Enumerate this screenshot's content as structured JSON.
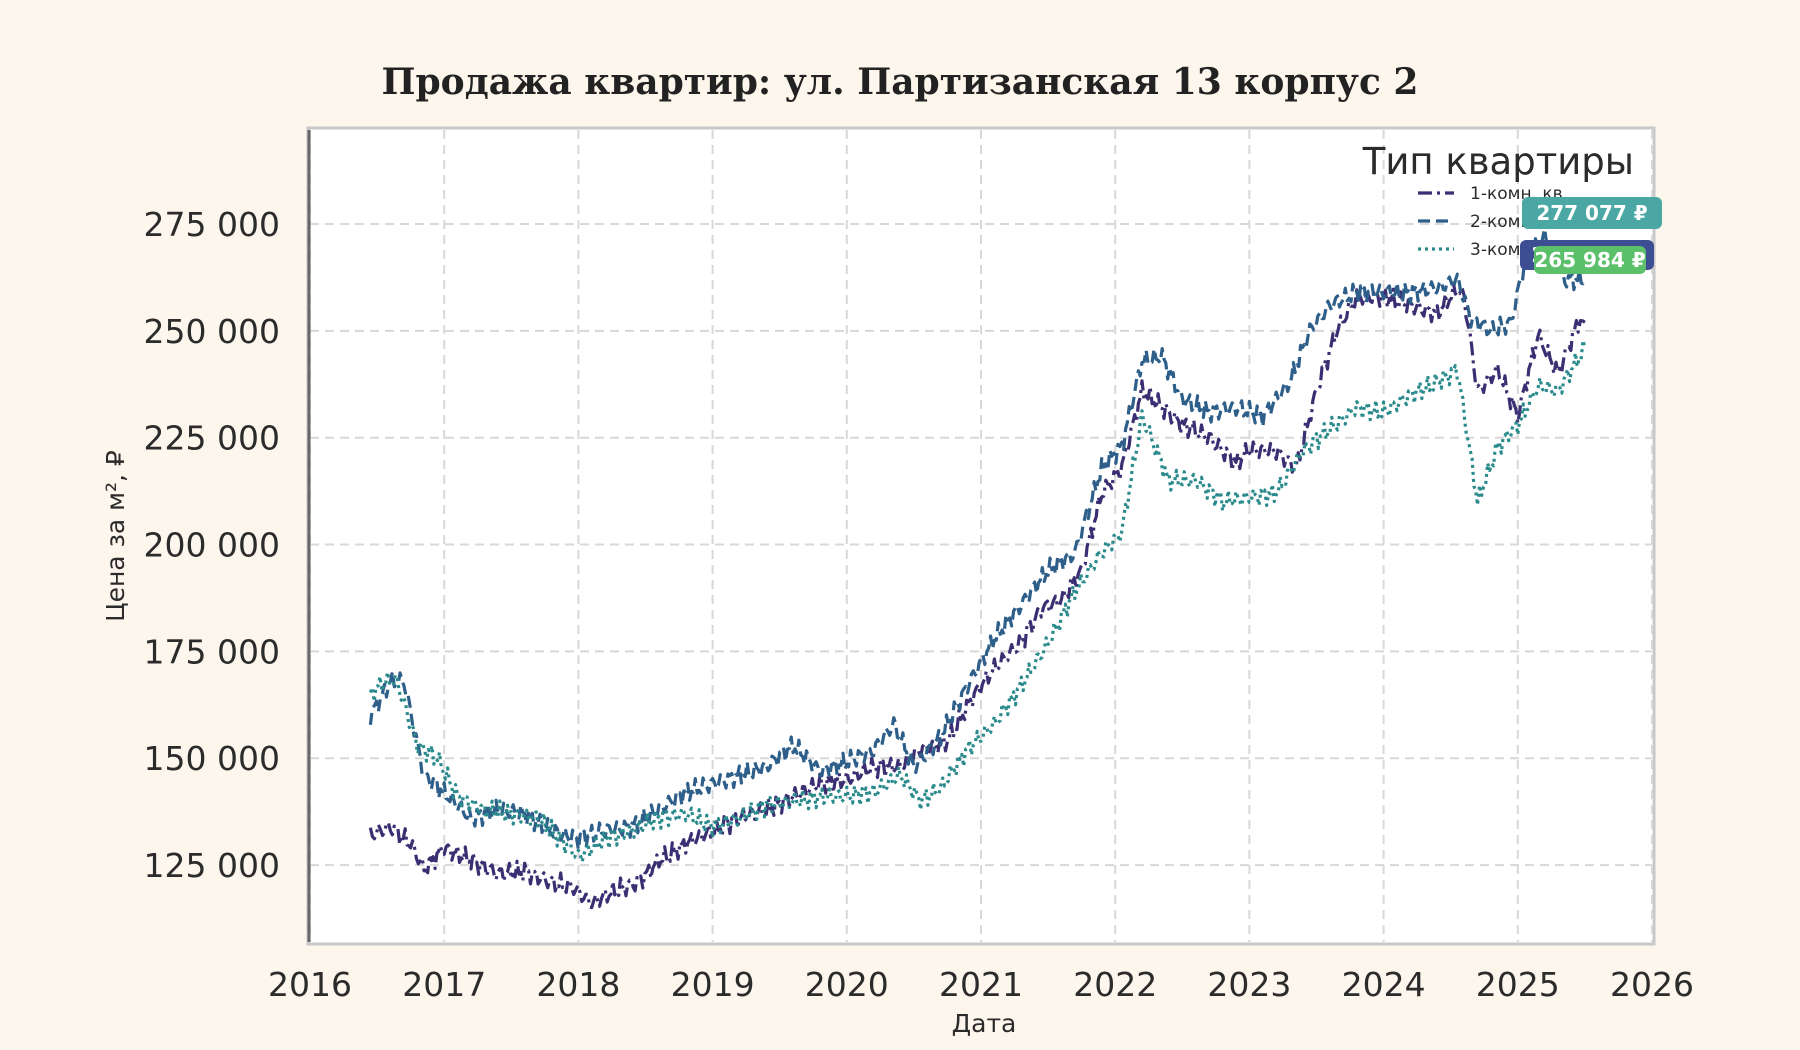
{
  "chart_data": {
    "type": "line",
    "title": "Продажа квартир: ул. Партизанская 13 корпус 2",
    "xlabel": "Дата",
    "ylabel": "Цена за м², ₽",
    "xlim": [
      2016,
      2026
    ],
    "ylim": [
      107000,
      297000
    ],
    "x_ticks": [
      "2016",
      "2017",
      "2018",
      "2019",
      "2020",
      "2021",
      "2022",
      "2023",
      "2024",
      "2025",
      "2026"
    ],
    "y_ticks": [
      125000,
      150000,
      175000,
      200000,
      225000,
      250000,
      275000
    ],
    "y_tick_labels": [
      "125 000",
      "150 000",
      "175 000",
      "200 000",
      "225 000",
      "250 000",
      "275 000"
    ],
    "grid": true,
    "legend": {
      "title": "Тип квартиры",
      "placement": "top-right"
    },
    "series": [
      {
        "name": "1-комн. кв.",
        "color": "#3b2e72",
        "style": "dashdot",
        "points": [
          [
            2016.45,
            132000
          ],
          [
            2016.6,
            134000
          ],
          [
            2016.75,
            130000
          ],
          [
            2016.85,
            124000
          ],
          [
            2017.0,
            129000
          ],
          [
            2017.2,
            126000
          ],
          [
            2017.4,
            123000
          ],
          [
            2017.6,
            123500
          ],
          [
            2017.8,
            121000
          ],
          [
            2017.95,
            120000
          ],
          [
            2018.1,
            116000
          ],
          [
            2018.3,
            119500
          ],
          [
            2018.45,
            121000
          ],
          [
            2018.6,
            126000
          ],
          [
            2018.8,
            130000
          ],
          [
            2019.0,
            133000
          ],
          [
            2019.2,
            136000
          ],
          [
            2019.4,
            138000
          ],
          [
            2019.6,
            141000
          ],
          [
            2019.8,
            144000
          ],
          [
            2020.0,
            145000
          ],
          [
            2020.2,
            148000
          ],
          [
            2020.4,
            148000
          ],
          [
            2020.55,
            152000
          ],
          [
            2020.75,
            154000
          ],
          [
            2020.95,
            165000
          ],
          [
            2021.1,
            171000
          ],
          [
            2021.3,
            177000
          ],
          [
            2021.45,
            185000
          ],
          [
            2021.6,
            187000
          ],
          [
            2021.75,
            194000
          ],
          [
            2021.9,
            212000
          ],
          [
            2022.05,
            218000
          ],
          [
            2022.2,
            236000
          ],
          [
            2022.35,
            232000
          ],
          [
            2022.5,
            228000
          ],
          [
            2022.7,
            225000
          ],
          [
            2022.9,
            219000
          ],
          [
            2023.0,
            222000
          ],
          [
            2023.2,
            222000
          ],
          [
            2023.35,
            218000
          ],
          [
            2023.5,
            236000
          ],
          [
            2023.65,
            250000
          ],
          [
            2023.8,
            258000
          ],
          [
            2024.0,
            258000
          ],
          [
            2024.2,
            256000
          ],
          [
            2024.4,
            254000
          ],
          [
            2024.55,
            260000
          ],
          [
            2024.6,
            258000
          ],
          [
            2024.7,
            236000
          ],
          [
            2024.85,
            241000
          ],
          [
            2025.0,
            230000
          ],
          [
            2025.15,
            249000
          ],
          [
            2025.3,
            240000
          ],
          [
            2025.45,
            252000
          ],
          [
            2025.5,
            252000
          ]
        ]
      },
      {
        "name": "2-комн. кв.",
        "color": "#2e5f8a",
        "style": "dashed",
        "points": [
          [
            2016.45,
            160000
          ],
          [
            2016.6,
            168000
          ],
          [
            2016.7,
            168000
          ],
          [
            2016.85,
            146000
          ],
          [
            2017.0,
            142000
          ],
          [
            2017.2,
            136000
          ],
          [
            2017.4,
            138000
          ],
          [
            2017.6,
            137000
          ],
          [
            2017.8,
            133000
          ],
          [
            2018.0,
            131000
          ],
          [
            2018.2,
            133000
          ],
          [
            2018.4,
            134000
          ],
          [
            2018.6,
            138000
          ],
          [
            2018.8,
            142000
          ],
          [
            2019.0,
            144000
          ],
          [
            2019.2,
            146000
          ],
          [
            2019.4,
            148000
          ],
          [
            2019.6,
            153000
          ],
          [
            2019.8,
            147000
          ],
          [
            2020.0,
            149000
          ],
          [
            2020.2,
            152000
          ],
          [
            2020.35,
            158000
          ],
          [
            2020.5,
            148000
          ],
          [
            2020.7,
            155000
          ],
          [
            2020.9,
            167000
          ],
          [
            2021.1,
            178000
          ],
          [
            2021.3,
            186000
          ],
          [
            2021.5,
            194000
          ],
          [
            2021.7,
            198000
          ],
          [
            2021.9,
            218000
          ],
          [
            2022.05,
            223000
          ],
          [
            2022.2,
            243000
          ],
          [
            2022.35,
            244000
          ],
          [
            2022.5,
            234000
          ],
          [
            2022.7,
            231000
          ],
          [
            2022.9,
            232000
          ],
          [
            2023.1,
            230000
          ],
          [
            2023.3,
            238000
          ],
          [
            2023.45,
            250000
          ],
          [
            2023.6,
            256000
          ],
          [
            2023.8,
            259000
          ],
          [
            2024.0,
            259000
          ],
          [
            2024.2,
            259000
          ],
          [
            2024.4,
            260000
          ],
          [
            2024.55,
            262000
          ],
          [
            2024.65,
            253000
          ],
          [
            2024.8,
            250000
          ],
          [
            2024.95,
            252000
          ],
          [
            2025.05,
            266000
          ],
          [
            2025.2,
            272000
          ],
          [
            2025.35,
            262000
          ],
          [
            2025.5,
            262000
          ]
        ]
      },
      {
        "name": "3-комн. кв.",
        "color": "#2a8a8c",
        "style": "dotted",
        "points": [
          [
            2016.45,
            165000
          ],
          [
            2016.55,
            168000
          ],
          [
            2016.65,
            168000
          ],
          [
            2016.8,
            153000
          ],
          [
            2016.95,
            150000
          ],
          [
            2017.1,
            141000
          ],
          [
            2017.3,
            138000
          ],
          [
            2017.5,
            137000
          ],
          [
            2017.7,
            136000
          ],
          [
            2017.9,
            130000
          ],
          [
            2018.0,
            127000
          ],
          [
            2018.2,
            131000
          ],
          [
            2018.4,
            133000
          ],
          [
            2018.6,
            136000
          ],
          [
            2018.8,
            137000
          ],
          [
            2019.0,
            134000
          ],
          [
            2019.2,
            136000
          ],
          [
            2019.4,
            139000
          ],
          [
            2019.6,
            140000
          ],
          [
            2019.8,
            141000
          ],
          [
            2020.0,
            141000
          ],
          [
            2020.2,
            142000
          ],
          [
            2020.4,
            146000
          ],
          [
            2020.55,
            140000
          ],
          [
            2020.7,
            143000
          ],
          [
            2020.9,
            152000
          ],
          [
            2021.1,
            158000
          ],
          [
            2021.3,
            167000
          ],
          [
            2021.5,
            177000
          ],
          [
            2021.7,
            189000
          ],
          [
            2021.9,
            198000
          ],
          [
            2022.05,
            203000
          ],
          [
            2022.2,
            230000
          ],
          [
            2022.4,
            215000
          ],
          [
            2022.6,
            215000
          ],
          [
            2022.8,
            210000
          ],
          [
            2023.0,
            211000
          ],
          [
            2023.2,
            212000
          ],
          [
            2023.4,
            222000
          ],
          [
            2023.6,
            227000
          ],
          [
            2023.8,
            232000
          ],
          [
            2024.0,
            231000
          ],
          [
            2024.2,
            235000
          ],
          [
            2024.4,
            238000
          ],
          [
            2024.55,
            241000
          ],
          [
            2024.7,
            210000
          ],
          [
            2024.85,
            223000
          ],
          [
            2025.0,
            228000
          ],
          [
            2025.15,
            237000
          ],
          [
            2025.3,
            236000
          ],
          [
            2025.5,
            246000
          ]
        ]
      }
    ],
    "annotations": [
      "277 077 ₽",
      "265 363 ₽",
      "265 984 ₽"
    ],
    "annotation_colors": [
      "#4aa7a3",
      "#3d4f92",
      "#5cbf6a"
    ],
    "annotation_values": [
      277077,
      265363,
      265984
    ]
  }
}
